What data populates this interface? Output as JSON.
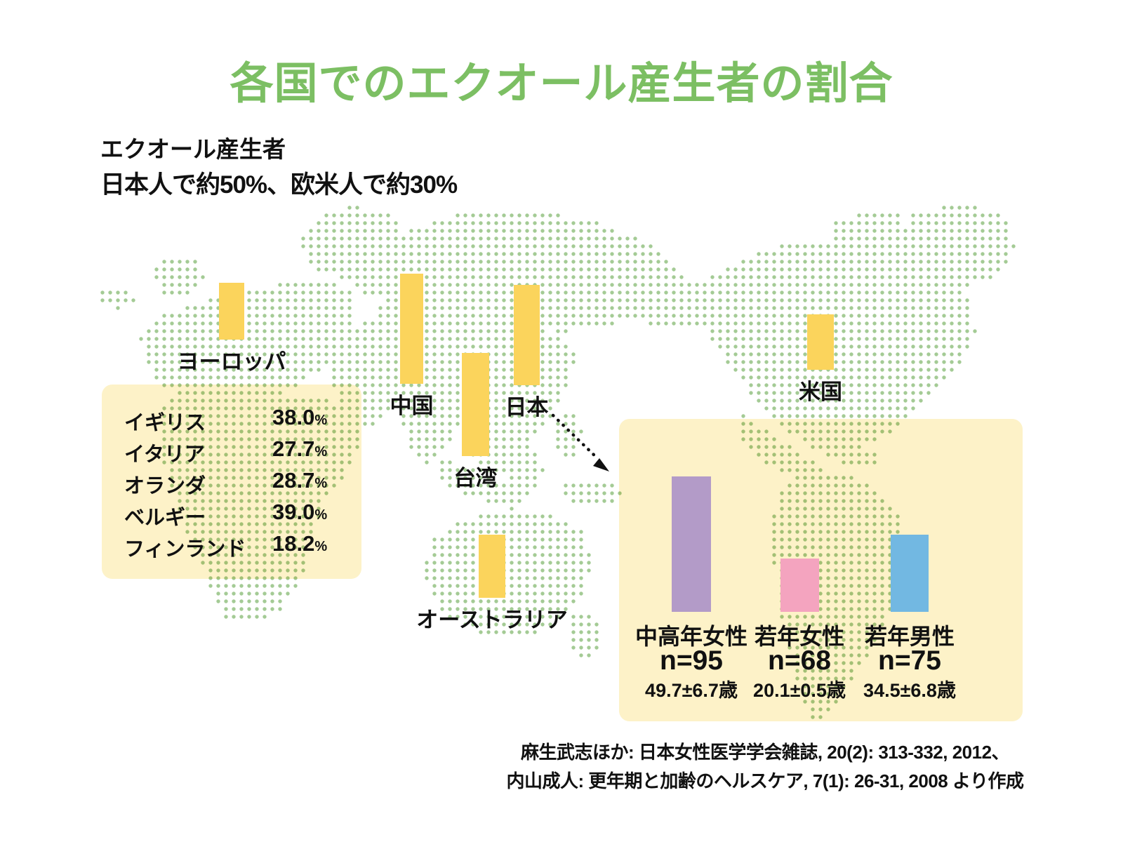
{
  "title": {
    "text": "各国でのエクオール産生者の割合",
    "color": "#7cbf63"
  },
  "subtitle": {
    "line1": "エクオール産生者",
    "line2": "日本人で約50%、欧米人で約30%"
  },
  "chart_data": {
    "type": "bar",
    "title": "各国でのエクオール産生者の割合",
    "unit": "%",
    "note": "pictorial bar chart over dotted world map; values = % of equol producers",
    "map_bars": [
      {
        "label": "ヨーロッパ",
        "value": 28.2,
        "display": "28.2"
      },
      {
        "label": "中国",
        "value": 54.9,
        "display": "54.9"
      },
      {
        "label": "台湾",
        "value": 51.5,
        "display": "51.5"
      },
      {
        "label": "日本",
        "value": 50.0,
        "display": "50.0"
      },
      {
        "label": "米国",
        "value": 27.6,
        "display": "27.6"
      },
      {
        "label": "オーストラリア",
        "value": 31.3,
        "display": "31.3"
      }
    ],
    "europe_breakdown": [
      {
        "label": "イギリス",
        "value": 38.0,
        "display": "38.0"
      },
      {
        "label": "イタリア",
        "value": 27.7,
        "display": "27.7"
      },
      {
        "label": "オランダ",
        "value": 28.7,
        "display": "28.7"
      },
      {
        "label": "ベルギー",
        "value": 39.0,
        "display": "39.0"
      },
      {
        "label": "フィンランド",
        "value": 18.2,
        "display": "18.2"
      }
    ],
    "japan_breakdown": [
      {
        "label": "中高年女性",
        "value": 51.6,
        "display": "51.6",
        "n": "n=95",
        "age": "49.7±6.7歳",
        "color": "#b39bc8"
      },
      {
        "label": "若年女性",
        "value": 20.4,
        "display": "20.4",
        "n": "n=68",
        "age": "20.1±0.5歳",
        "color": "#f4a4bf"
      },
      {
        "label": "若年男性",
        "value": 29.3,
        "display": "29.3",
        "n": "n=75",
        "age": "34.5±6.8歳",
        "color": "#72b8e2"
      }
    ],
    "legend_position": "none",
    "grid": false
  },
  "source": {
    "line1": "麻生武志ほか: 日本女性医学学会雑誌, 20(2): 313-332, 2012、",
    "line2": "内山成人: 更年期と加齢のヘルスケア, 7(1): 26-31, 2008 より作成"
  },
  "colors": {
    "title_green": "#7cbf63",
    "map_dot_green": "#a4cb95",
    "bar_yellow": "#fbd45c",
    "panel_cream": "#fdf2c8",
    "detail_purple": "#b39bc8",
    "detail_pink": "#f4a4bf",
    "detail_blue": "#72b8e2",
    "text_black": "#111111"
  }
}
